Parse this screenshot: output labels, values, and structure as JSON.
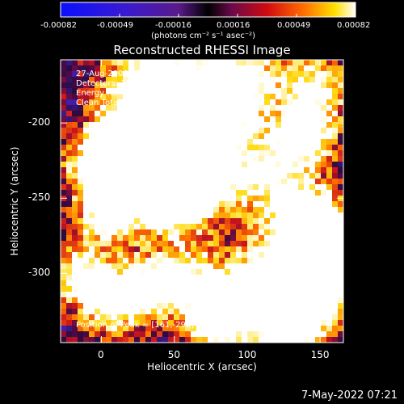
{
  "colorbar": {
    "ticks": [
      "-0.00082",
      "-0.00049",
      "-0.00016",
      "0.00016",
      "0.00049",
      "0.00082"
    ],
    "unit_label": "(photons cm⁻² s⁻¹ asec⁻²)"
  },
  "chart_data": {
    "type": "heatmap",
    "title": "Reconstructed RHESSI Image",
    "xlabel": "Heliocentric X (arcsec)",
    "ylabel": "Heliocentric Y (arcsec)",
    "xlim": [
      -28,
      166
    ],
    "ylim": [
      -346,
      -158
    ],
    "xticks": [
      0,
      50,
      100,
      150
    ],
    "yticks": [
      -200,
      -250,
      -300
    ],
    "colormap": "black-purple-blue-red-orange-yellow-white",
    "value_range": [
      -0.00082,
      0.00082
    ],
    "peak": [
      161,
      -290
    ],
    "info": [
      "27-Aug-2006 03:29:16.000 to 03:30:52.000",
      "Detectors: 3F 4F 5F 6F 7F 8F, Att 0",
      "Energy Range: 25.0 - 50.0 keV",
      "Clean    Total counts: 4.25E+03"
    ],
    "peak_text": "Position of Peak = [161,-290]"
  },
  "footer": {
    "date": "7-May-2022 07:21"
  }
}
